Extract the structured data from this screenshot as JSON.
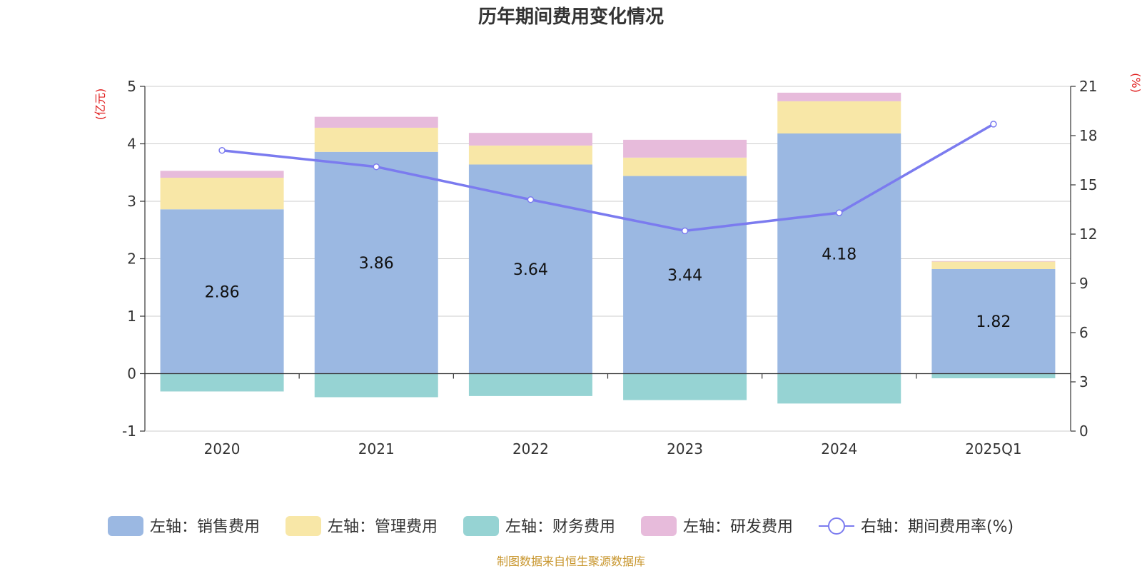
{
  "chart_data": {
    "type": "bar",
    "title": "历年期间费用变化情况",
    "categories": [
      "2020",
      "2021",
      "2022",
      "2023",
      "2024",
      "2025Q1"
    ],
    "left_axis": {
      "unit": "(亿元)",
      "ylim": [
        -1,
        5
      ],
      "ticks": [
        -1,
        0,
        1,
        2,
        3,
        4,
        5
      ]
    },
    "right_axis": {
      "unit": "(%)",
      "ylim": [
        0,
        21
      ],
      "ticks": [
        0,
        3,
        6,
        9,
        12,
        15,
        18,
        21
      ]
    },
    "series": [
      {
        "name": "左轴：销售费用",
        "axis": "left",
        "stack": true,
        "color": "#9bb8e2",
        "values": [
          2.86,
          3.86,
          3.64,
          3.44,
          4.18,
          1.82
        ],
        "labels": [
          "2.86",
          "3.86",
          "3.64",
          "3.44",
          "4.18",
          "1.82"
        ]
      },
      {
        "name": "左轴：管理费用",
        "axis": "left",
        "stack": true,
        "color": "#f8e7a7",
        "values": [
          0.55,
          0.42,
          0.33,
          0.32,
          0.56,
          0.13
        ]
      },
      {
        "name": "左轴：财务费用",
        "axis": "left",
        "stack": true,
        "color": "#96d3d3",
        "values": [
          -0.31,
          -0.41,
          -0.39,
          -0.46,
          -0.52,
          -0.08
        ]
      },
      {
        "name": "左轴：研发费用",
        "axis": "left",
        "stack": true,
        "color": "#e7bbdb",
        "values": [
          0.12,
          0.19,
          0.22,
          0.31,
          0.15,
          0.01
        ]
      },
      {
        "name": "右轴：期间费用率(%)",
        "axis": "right",
        "type": "line",
        "color": "#7b7bef",
        "values": [
          17.1,
          16.1,
          14.1,
          12.2,
          13.3,
          18.7
        ]
      }
    ],
    "grid": true,
    "legend_position": "bottom"
  },
  "footer": {
    "source": "制图数据来自恒生聚源数据库"
  }
}
